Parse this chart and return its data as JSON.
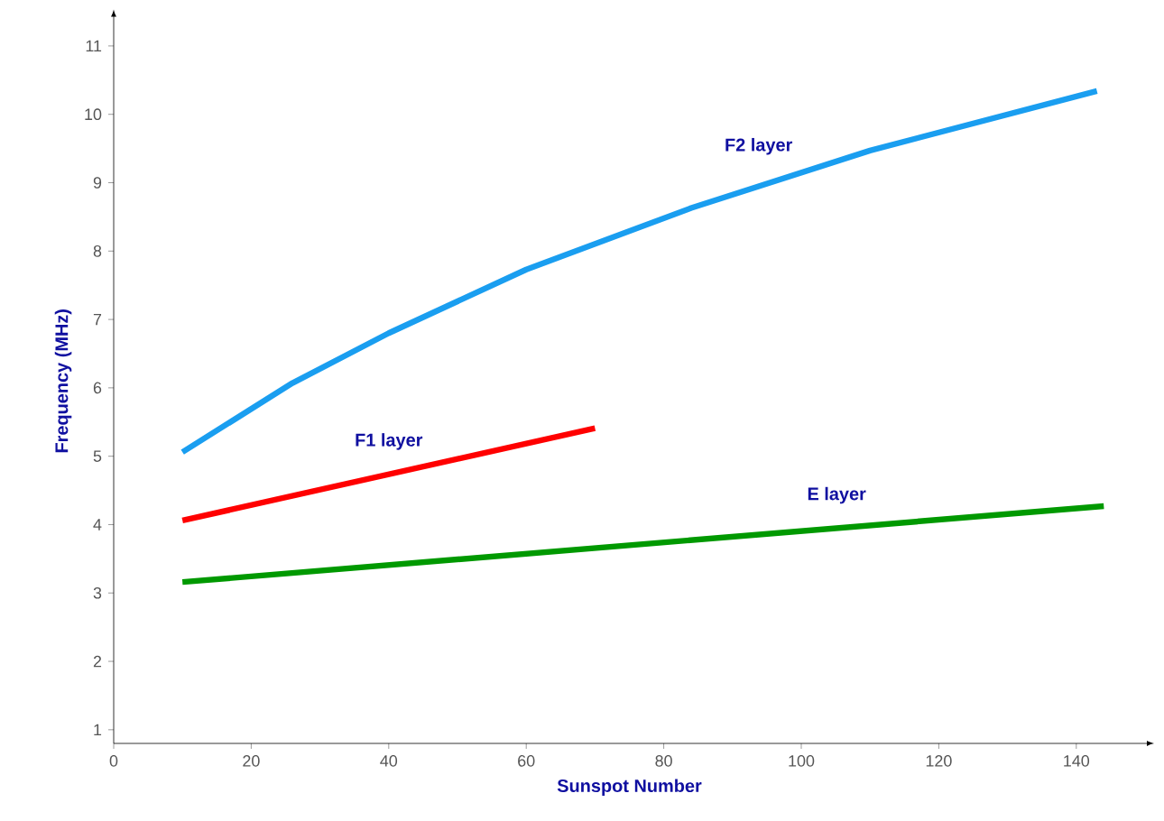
{
  "chart_data": {
    "type": "line",
    "xlabel": "Sunspot Number",
    "ylabel": "Frequency (MHz)",
    "xlim": [
      0,
      150
    ],
    "ylim": [
      0.8,
      11.4
    ],
    "xticks": [
      0,
      20,
      40,
      60,
      80,
      100,
      120,
      140
    ],
    "yticks": [
      1,
      2,
      3,
      4,
      5,
      6,
      7,
      8,
      9,
      10,
      11
    ],
    "series": [
      {
        "name": "F2 layer",
        "color": "#1a9ef0",
        "x": [
          10,
          26,
          40,
          60,
          84,
          110,
          143
        ],
        "values": [
          5.06,
          6.07,
          6.8,
          7.73,
          8.63,
          9.47,
          10.34
        ]
      },
      {
        "name": "F1 layer",
        "color": "#ff0000",
        "x": [
          10,
          70
        ],
        "values": [
          4.06,
          5.41
        ]
      },
      {
        "name": "E layer",
        "color": "#009900",
        "x": [
          10,
          144
        ],
        "values": [
          3.16,
          4.27
        ]
      }
    ]
  }
}
